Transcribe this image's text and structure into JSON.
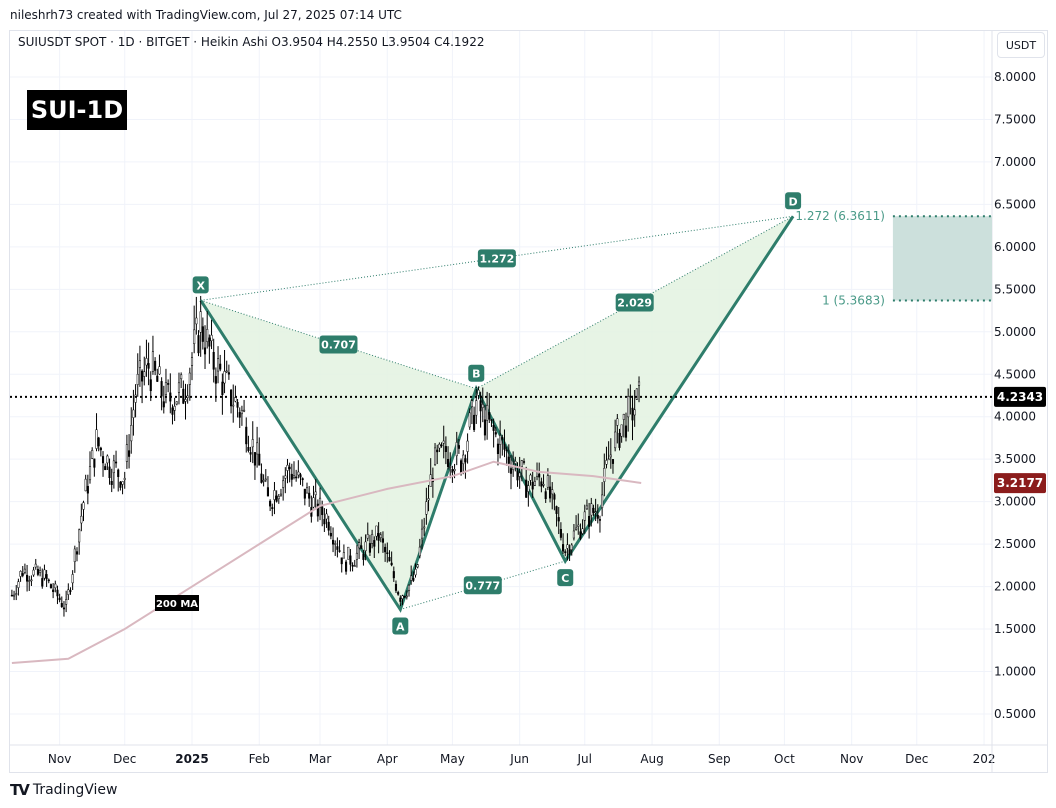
{
  "header": {
    "credit": "nileshrh73 created with TradingView.com, Jul 27, 2025 07:14 UTC",
    "legend": "SUIUSDT SPOT · 1D · BITGET · Heikin Ashi  O3.9504  H4.2550  L3.9504  C4.1922",
    "currency": "USDT",
    "symbol_badge": "SUI-1D"
  },
  "footer": {
    "logo_text": "TradingView"
  },
  "chart_data": {
    "type": "candlestick",
    "y_ticks": [
      "8.0000",
      "7.5000",
      "7.0000",
      "6.5000",
      "6.0000",
      "5.5000",
      "5.0000",
      "4.5000",
      "4.0000",
      "3.5000",
      "3.0000",
      "2.5000",
      "2.0000",
      "1.5000",
      "1.0000",
      "0.5000"
    ],
    "ylim": [
      0.5,
      8.0
    ],
    "x_ticks": [
      {
        "label": "Nov",
        "date": "2024-11-01"
      },
      {
        "label": "Dec",
        "date": "2024-12-01"
      },
      {
        "label": "2025",
        "date": "2025-01-01",
        "bold": true
      },
      {
        "label": "Feb",
        "date": "2025-02-01"
      },
      {
        "label": "Mar",
        "date": "2025-03-01"
      },
      {
        "label": "Apr",
        "date": "2025-04-01"
      },
      {
        "label": "May",
        "date": "2025-05-01"
      },
      {
        "label": "Jun",
        "date": "2025-06-01"
      },
      {
        "label": "Jul",
        "date": "2025-07-01"
      },
      {
        "label": "Aug",
        "date": "2025-08-01"
      },
      {
        "label": "Sep",
        "date": "2025-09-01"
      },
      {
        "label": "Oct",
        "date": "2025-10-01"
      },
      {
        "label": "Nov",
        "date": "2025-11-01"
      },
      {
        "label": "Dec",
        "date": "2025-12-01"
      },
      {
        "label": "202",
        "date": "2026-01-01"
      }
    ],
    "price_path": [
      [
        "2024-10-10",
        1.9
      ],
      [
        "2024-10-15",
        2.2
      ],
      [
        "2024-10-25",
        2.1
      ],
      [
        "2024-11-04",
        1.75
      ],
      [
        "2024-11-12",
        3.0
      ],
      [
        "2024-11-18",
        3.7
      ],
      [
        "2024-11-25",
        3.4
      ],
      [
        "2024-12-01",
        3.3
      ],
      [
        "2024-12-06",
        4.3
      ],
      [
        "2024-12-12",
        4.6
      ],
      [
        "2024-12-20",
        4.2
      ],
      [
        "2024-12-28",
        4.3
      ],
      [
        "2025-01-05",
        5.1
      ],
      [
        "2025-01-10",
        4.7
      ],
      [
        "2025-01-18",
        4.3
      ],
      [
        "2025-01-25",
        4.0
      ],
      [
        "2025-02-01",
        3.4
      ],
      [
        "2025-02-05",
        3.0
      ],
      [
        "2025-02-15",
        3.4
      ],
      [
        "2025-02-25",
        3.0
      ],
      [
        "2025-03-05",
        2.8
      ],
      [
        "2025-03-12",
        2.3
      ],
      [
        "2025-03-20",
        2.4
      ],
      [
        "2025-03-28",
        2.6
      ],
      [
        "2025-04-07",
        1.9
      ],
      [
        "2025-04-14",
        2.1
      ],
      [
        "2025-04-22",
        3.4
      ],
      [
        "2025-04-28",
        3.6
      ],
      [
        "2025-05-05",
        3.5
      ],
      [
        "2025-05-12",
        4.15
      ],
      [
        "2025-05-20",
        3.8
      ],
      [
        "2025-05-28",
        3.5
      ],
      [
        "2025-06-05",
        3.2
      ],
      [
        "2025-06-12",
        3.3
      ],
      [
        "2025-06-18",
        2.8
      ],
      [
        "2025-06-22",
        2.45
      ],
      [
        "2025-07-01",
        2.8
      ],
      [
        "2025-07-08",
        2.95
      ],
      [
        "2025-07-12",
        3.5
      ],
      [
        "2025-07-18",
        3.9
      ],
      [
        "2025-07-26",
        4.19
      ]
    ],
    "ma200": {
      "label": "200 MA",
      "color": "#d9b8c0",
      "path": [
        [
          "2024-10-10",
          1.1
        ],
        [
          "2024-11-05",
          1.15
        ],
        [
          "2024-12-01",
          1.5
        ],
        [
          "2025-01-01",
          2.0
        ],
        [
          "2025-02-01",
          2.5
        ],
        [
          "2025-03-01",
          2.95
        ],
        [
          "2025-04-01",
          3.15
        ],
        [
          "2025-05-01",
          3.3
        ],
        [
          "2025-05-20",
          3.47
        ],
        [
          "2025-06-10",
          3.35
        ],
        [
          "2025-07-05",
          3.3
        ],
        [
          "2025-07-27",
          3.22
        ]
      ]
    },
    "last_price": {
      "value": "4.2343",
      "color": "#000000"
    },
    "ma_price": {
      "value": "3.2177",
      "color": "#8b1c1c"
    },
    "pattern": {
      "color": "#2e7d6b",
      "fill": "#e3f2e1",
      "points": [
        {
          "label": "X",
          "date": "2025-01-05",
          "price": 5.37
        },
        {
          "label": "A",
          "date": "2025-04-07",
          "price": 1.73
        },
        {
          "label": "B",
          "date": "2025-05-12",
          "price": 4.33
        },
        {
          "label": "C",
          "date": "2025-06-22",
          "price": 2.3
        },
        {
          "label": "D",
          "date": "2025-10-05",
          "price": 6.36
        }
      ],
      "ratios": [
        {
          "label": "1.272",
          "from": "X",
          "to": "D"
        },
        {
          "label": "0.707",
          "from": "X",
          "to": "B"
        },
        {
          "label": "2.029",
          "from": "B",
          "to": "D"
        },
        {
          "label": "0.777",
          "from": "A",
          "to": "C"
        }
      ]
    },
    "target_zone": {
      "upper_label": "1.272 (6.3611)",
      "upper": 6.3611,
      "lower_label": "1 (5.3683)",
      "lower": 5.3683,
      "color": "#cce0dc",
      "start": "2025-11-20",
      "end": "2026-01-05"
    }
  }
}
